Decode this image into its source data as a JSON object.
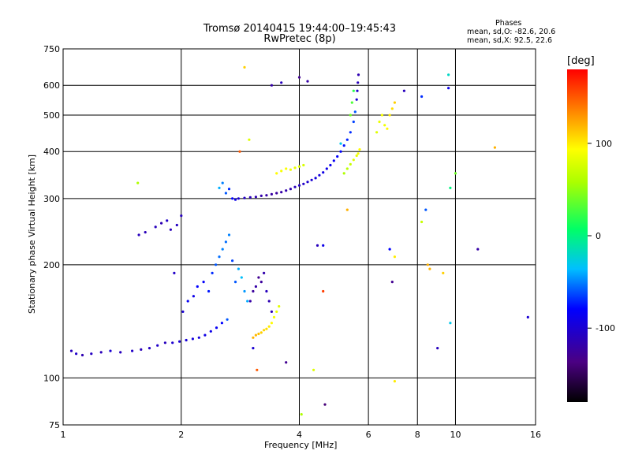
{
  "chart_data": {
    "type": "scatter",
    "title_line1": "Tromsø 20140415  19:44:00–19:45:43",
    "title_line2": "RwPretec (8p)",
    "legend_title": "Phases",
    "legend_line1": "mean, sd,O: -82.6, 20.6",
    "legend_line2": "mean, sd,X:  92.5, 22.6",
    "xlabel": "Frequency [MHz]",
    "ylabel": "Stationary phase Virtual Height [km]",
    "x_scale": "log",
    "y_scale": "log",
    "xlim": [
      1,
      16
    ],
    "ylim": [
      75,
      750
    ],
    "x_ticks": [
      1,
      2,
      4,
      6,
      8,
      10,
      16
    ],
    "x_tick_labels": [
      "1",
      "2",
      "4",
      "6",
      "8",
      "10",
      "16"
    ],
    "y_ticks": [
      75,
      100,
      200,
      300,
      400,
      500,
      600,
      750
    ],
    "y_tick_labels": [
      "75",
      "100",
      "200",
      "300",
      "400",
      "500",
      "600",
      "750"
    ],
    "colorbar": {
      "label": "[deg]",
      "range": [
        -180,
        180
      ],
      "ticks": [
        100,
        0,
        -100
      ],
      "tick_labels": [
        "100",
        "0",
        "-100"
      ]
    },
    "series": [
      {
        "points": [
          [
            1.05,
            118,
            -110
          ],
          [
            1.08,
            116,
            -105
          ],
          [
            1.12,
            115,
            -115
          ],
          [
            1.18,
            116,
            -108
          ],
          [
            1.25,
            117,
            -112
          ],
          [
            1.32,
            118,
            -100
          ],
          [
            1.4,
            117,
            -110
          ],
          [
            1.5,
            118,
            -105
          ],
          [
            1.58,
            119,
            -112
          ],
          [
            1.66,
            120,
            -108
          ],
          [
            1.74,
            122,
            -104
          ],
          [
            1.82,
            124,
            -110
          ],
          [
            1.9,
            124,
            -102
          ],
          [
            1.98,
            125,
            -100
          ],
          [
            2.06,
            126,
            -98
          ],
          [
            2.14,
            127,
            -95
          ],
          [
            2.22,
            128,
            -95
          ],
          [
            2.3,
            130,
            -92
          ],
          [
            2.38,
            133,
            -90
          ],
          [
            2.46,
            136,
            -85
          ],
          [
            2.54,
            140,
            -80
          ],
          [
            2.62,
            143,
            -60
          ],
          [
            1.56,
            240,
            -110
          ],
          [
            1.62,
            244,
            -112
          ],
          [
            1.72,
            252,
            -110
          ],
          [
            1.78,
            258,
            -115
          ],
          [
            1.84,
            262,
            -105
          ],
          [
            1.88,
            248,
            -112
          ],
          [
            1.95,
            255,
            -108
          ],
          [
            2.0,
            270,
            -110
          ],
          [
            2.02,
            150,
            -100
          ],
          [
            2.08,
            160,
            -85
          ],
          [
            2.15,
            165,
            -90
          ],
          [
            2.2,
            175,
            -80
          ],
          [
            2.28,
            180,
            -82
          ],
          [
            2.35,
            170,
            -75
          ],
          [
            2.4,
            190,
            -70
          ],
          [
            2.45,
            200,
            -60
          ],
          [
            2.5,
            210,
            -55
          ],
          [
            2.55,
            220,
            -50
          ],
          [
            2.6,
            230,
            -55
          ],
          [
            2.65,
            240,
            -50
          ],
          [
            2.7,
            205,
            -65
          ],
          [
            2.75,
            180,
            -60
          ],
          [
            2.8,
            195,
            -40
          ],
          [
            2.85,
            185,
            -35
          ],
          [
            2.9,
            170,
            -45
          ],
          [
            2.95,
            160,
            -40
          ],
          [
            2.5,
            320,
            -40
          ],
          [
            2.55,
            330,
            -50
          ],
          [
            2.6,
            310,
            -60
          ],
          [
            2.65,
            318,
            -70
          ],
          [
            2.7,
            300,
            -80
          ],
          [
            2.75,
            298,
            -90
          ],
          [
            2.8,
            300,
            -100
          ],
          [
            2.9,
            301,
            -108
          ],
          [
            3.0,
            302,
            -112
          ],
          [
            3.1,
            303,
            -115
          ],
          [
            3.2,
            305,
            -118
          ],
          [
            3.3,
            306,
            -120
          ],
          [
            3.4,
            308,
            -122
          ],
          [
            3.5,
            310,
            -125
          ],
          [
            3.6,
            312,
            -120
          ],
          [
            3.7,
            315,
            -118
          ],
          [
            3.8,
            318,
            -115
          ],
          [
            3.9,
            322,
            -110
          ],
          [
            4.0,
            325,
            -108
          ],
          [
            4.1,
            328,
            -105
          ],
          [
            4.2,
            332,
            -102
          ],
          [
            4.3,
            336,
            -100
          ],
          [
            4.4,
            340,
            -96
          ],
          [
            4.5,
            346,
            -95
          ],
          [
            4.6,
            352,
            -92
          ],
          [
            4.7,
            360,
            -90
          ],
          [
            4.8,
            368,
            -88
          ],
          [
            4.9,
            378,
            -85
          ],
          [
            5.0,
            388,
            -82
          ],
          [
            5.1,
            400,
            -80
          ],
          [
            5.2,
            415,
            -75
          ],
          [
            5.3,
            430,
            -72
          ],
          [
            5.4,
            450,
            -70
          ],
          [
            5.5,
            480,
            -65
          ],
          [
            5.55,
            510,
            -60
          ],
          [
            5.6,
            550,
            -100
          ],
          [
            5.62,
            580,
            -105
          ],
          [
            5.64,
            610,
            -110
          ],
          [
            5.66,
            640,
            -115
          ],
          [
            3.0,
            160,
            -120
          ],
          [
            3.05,
            170,
            -125
          ],
          [
            3.1,
            175,
            -120
          ],
          [
            3.15,
            185,
            -130
          ],
          [
            3.2,
            180,
            -125
          ],
          [
            3.25,
            190,
            -118
          ],
          [
            3.3,
            170,
            -110
          ],
          [
            3.35,
            160,
            -115
          ],
          [
            3.4,
            150,
            -112
          ],
          [
            3.05,
            128,
            120
          ],
          [
            3.1,
            130,
            118
          ],
          [
            3.15,
            131,
            115
          ],
          [
            3.2,
            132,
            110
          ],
          [
            3.25,
            134,
            108
          ],
          [
            3.3,
            135,
            105
          ],
          [
            3.35,
            137,
            100
          ],
          [
            3.4,
            140,
            95
          ],
          [
            3.45,
            145,
            90
          ],
          [
            3.5,
            150,
            85
          ],
          [
            3.55,
            155,
            82
          ],
          [
            3.5,
            350,
            95
          ],
          [
            3.6,
            355,
            90
          ],
          [
            3.7,
            360,
            92
          ],
          [
            3.8,
            358,
            88
          ],
          [
            3.9,
            362,
            85
          ],
          [
            4.0,
            365,
            80
          ],
          [
            4.1,
            368,
            78
          ],
          [
            5.2,
            350,
            60
          ],
          [
            5.3,
            360,
            65
          ],
          [
            5.4,
            370,
            70
          ],
          [
            5.5,
            380,
            80
          ],
          [
            5.6,
            390,
            85
          ],
          [
            5.65,
            395,
            90
          ],
          [
            5.7,
            405,
            95
          ],
          [
            5.4,
            500,
            40
          ],
          [
            5.45,
            540,
            30
          ],
          [
            5.5,
            580,
            20
          ],
          [
            6.3,
            450,
            80
          ],
          [
            6.4,
            480,
            85
          ],
          [
            6.5,
            500,
            90
          ],
          [
            6.6,
            470,
            88
          ],
          [
            6.7,
            460,
            95
          ],
          [
            6.8,
            500,
            100
          ],
          [
            6.9,
            520,
            105
          ],
          [
            7.0,
            540,
            110
          ],
          [
            3.4,
            600,
            -120
          ],
          [
            3.6,
            610,
            -110
          ],
          [
            4.0,
            630,
            -130
          ],
          [
            4.2,
            615,
            -120
          ],
          [
            7.4,
            580,
            -110
          ],
          [
            8.2,
            560,
            -70
          ],
          [
            9.6,
            640,
            -20
          ],
          [
            9.6,
            590,
            -90
          ],
          [
            1.55,
            330,
            60
          ],
          [
            1.92,
            190,
            -105
          ],
          [
            2.9,
            670,
            110
          ],
          [
            2.82,
            400,
            150
          ],
          [
            2.98,
            430,
            80
          ],
          [
            3.05,
            120,
            -100
          ],
          [
            3.12,
            105,
            150
          ],
          [
            3.7,
            110,
            -130
          ],
          [
            4.05,
            80,
            60
          ],
          [
            4.35,
            105,
            80
          ],
          [
            4.45,
            225,
            -110
          ],
          [
            4.6,
            225,
            -90
          ],
          [
            4.65,
            85,
            -140
          ],
          [
            4.6,
            170,
            160
          ],
          [
            5.1,
            420,
            -30
          ],
          [
            5.3,
            280,
            120
          ],
          [
            6.8,
            220,
            -80
          ],
          [
            6.9,
            180,
            -130
          ],
          [
            7.0,
            210,
            100
          ],
          [
            7.0,
            98,
            100
          ],
          [
            8.2,
            260,
            70
          ],
          [
            8.4,
            280,
            -60
          ],
          [
            8.5,
            200,
            120
          ],
          [
            8.6,
            195,
            120
          ],
          [
            9.0,
            120,
            -110
          ],
          [
            9.3,
            190,
            110
          ],
          [
            9.7,
            140,
            -30
          ],
          [
            9.7,
            320,
            0
          ],
          [
            10.0,
            350,
            40
          ],
          [
            11.4,
            220,
            -120
          ],
          [
            12.6,
            410,
            120
          ],
          [
            15.3,
            145,
            -100
          ]
        ]
      }
    ]
  }
}
